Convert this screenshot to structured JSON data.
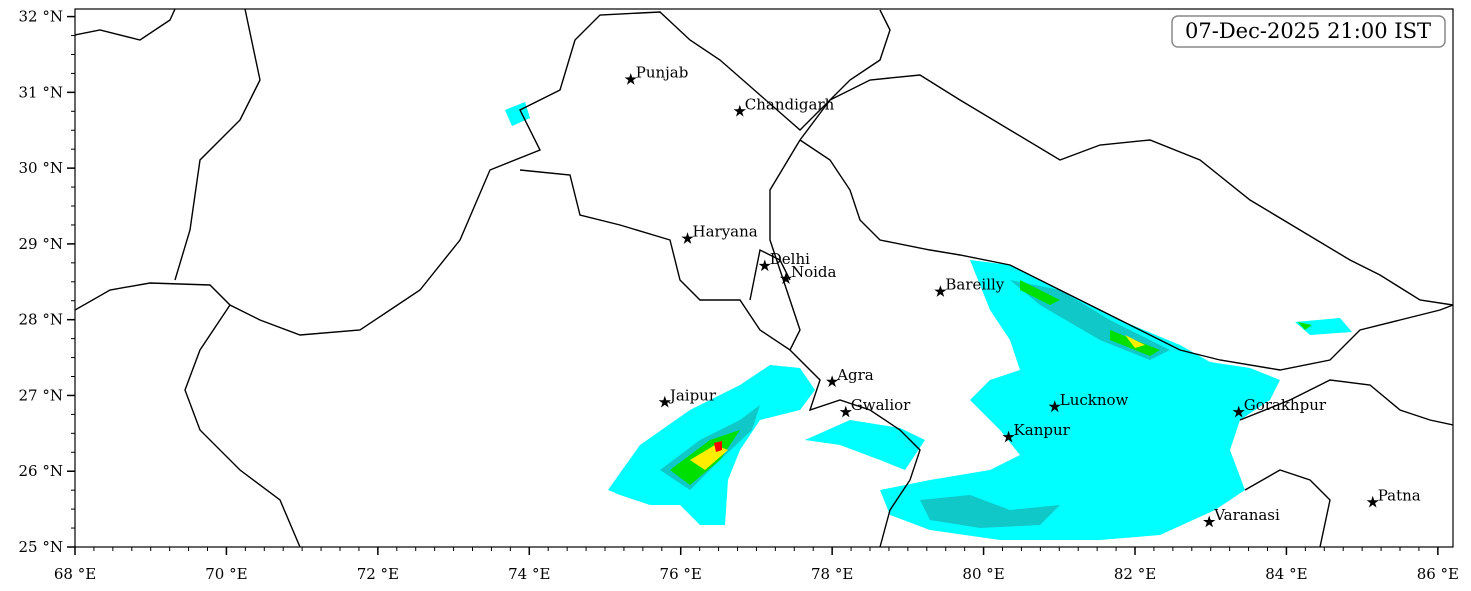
{
  "title": "07-Dec-2025 21:00 IST",
  "lon_range": [
    68,
    86.2
  ],
  "lat_range": [
    25,
    32.1
  ],
  "lon_ticks": [
    {
      "value": 68,
      "label": "68 °E"
    },
    {
      "value": 70,
      "label": "70 °E"
    },
    {
      "value": 72,
      "label": "72 °E"
    },
    {
      "value": 74,
      "label": "74 °E"
    },
    {
      "value": 76,
      "label": "76 °E"
    },
    {
      "value": 78,
      "label": "78 °E"
    },
    {
      "value": 80,
      "label": "80 °E"
    },
    {
      "value": 82,
      "label": "82 °E"
    },
    {
      "value": 84,
      "label": "84 °E"
    },
    {
      "value": 86,
      "label": "86 °E"
    }
  ],
  "lat_ticks": [
    {
      "value": 25,
      "label": "25 °N"
    },
    {
      "value": 26,
      "label": "26 °N"
    },
    {
      "value": 27,
      "label": "27 °N"
    },
    {
      "value": 28,
      "label": "28 °N"
    },
    {
      "value": 29,
      "label": "29 °N"
    },
    {
      "value": 30,
      "label": "30 °N"
    },
    {
      "value": 31,
      "label": "31 °N"
    },
    {
      "value": 32,
      "label": "32 °N"
    }
  ],
  "cities": [
    {
      "name": "Punjab",
      "lon": 75.34,
      "lat": 31.17
    },
    {
      "name": "Chandigarh",
      "lon": 76.78,
      "lat": 30.75
    },
    {
      "name": "Haryana",
      "lon": 76.09,
      "lat": 29.07
    },
    {
      "name": "Delhi",
      "lon": 77.11,
      "lat": 28.71
    },
    {
      "name": "Noida",
      "lon": 77.39,
      "lat": 28.54
    },
    {
      "name": "Bareilly",
      "lon": 79.43,
      "lat": 28.37
    },
    {
      "name": "Agra",
      "lon": 78.0,
      "lat": 27.18
    },
    {
      "name": "Gwalior",
      "lon": 78.18,
      "lat": 26.78
    },
    {
      "name": "Jaipur",
      "lon": 75.79,
      "lat": 26.91
    },
    {
      "name": "Lucknow",
      "lon": 80.94,
      "lat": 26.85
    },
    {
      "name": "Kanpur",
      "lon": 80.33,
      "lat": 26.45
    },
    {
      "name": "Gorakhpur",
      "lon": 83.37,
      "lat": 26.78
    },
    {
      "name": "Varanasi",
      "lon": 82.98,
      "lat": 25.33
    },
    {
      "name": "Patna",
      "lon": 85.14,
      "lat": 25.59
    }
  ]
}
